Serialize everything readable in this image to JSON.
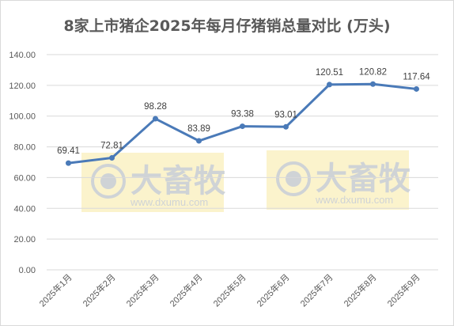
{
  "chart_data": {
    "type": "line",
    "title": "8家上市猪企2025年每月仔猪销总量对比 (万头)",
    "categories": [
      "2025年1月",
      "2025年2月",
      "2025年3月",
      "2025年4月",
      "2025年5月",
      "2025年6月",
      "2025年7月",
      "2025年8月",
      "2025年9月"
    ],
    "series": [
      {
        "values": [
          69.41,
          72.81,
          98.28,
          83.89,
          93.38,
          93.01,
          120.51,
          120.82,
          117.64
        ]
      }
    ],
    "data_labels": [
      "69.41",
      "72.81",
      "98.28",
      "83.89",
      "93.38",
      "93.01",
      "120.51",
      "120.82",
      "117.64"
    ],
    "y_ticks": [
      "0.00",
      "20.00",
      "40.00",
      "60.00",
      "80.00",
      "100.00",
      "120.00",
      "140.00"
    ],
    "ylim": [
      0,
      140
    ],
    "grid": true,
    "legend": "none",
    "colors": {
      "line": "#4a7ab8",
      "grid": "#d9d9d9",
      "axis_text": "#595959"
    }
  },
  "watermark": {
    "name": "大畜牧",
    "url": "www.dxumu.com",
    "colors": {
      "box": "#fbf3cc",
      "text": "#cfd3d6"
    }
  }
}
